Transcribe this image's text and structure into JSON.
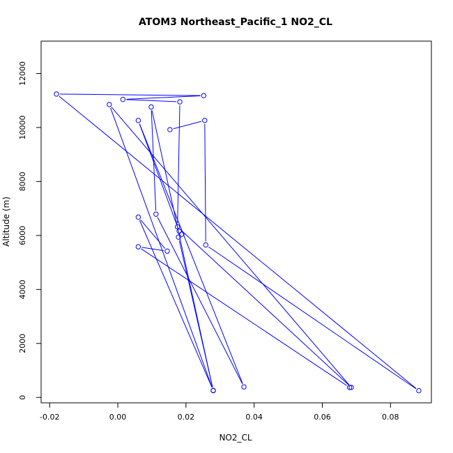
{
  "chart_data": {
    "type": "line",
    "title": "ATOM3 Northeast_Pacific_1 NO2_CL",
    "xlabel": "NO2_CL",
    "ylabel": "Altitude (m)",
    "xlim": [
      -0.0225,
      0.092
    ],
    "ylim": [
      -200,
      13200
    ],
    "x_ticks": [
      -0.02,
      0,
      0.02,
      0.04,
      0.06,
      0.08
    ],
    "x_tick_labels": [
      "-0.02",
      "0.00",
      "0.02",
      "0.04",
      "0.06",
      "0.08"
    ],
    "y_ticks": [
      0,
      2000,
      4000,
      6000,
      8000,
      10000,
      12000
    ],
    "y_tick_labels": [
      "0",
      "2000",
      "4000",
      "6000",
      "8000",
      "10000",
      "12000"
    ],
    "grid": false,
    "legend": "none",
    "series": [
      {
        "color": "#0000ff",
        "marker": "open-circle",
        "points": [
          {
            "x": 0.0153,
            "y": 9920
          },
          {
            "x": 0.0255,
            "y": 10260
          },
          {
            "x": 0.0258,
            "y": 5650
          },
          {
            "x": 0.0883,
            "y": 250
          },
          {
            "x": -0.018,
            "y": 11240
          },
          {
            "x": 0.0252,
            "y": 11180
          },
          {
            "x": 0.0015,
            "y": 11040
          },
          {
            "x": 0.0182,
            "y": 10950
          },
          {
            "x": 0.0175,
            "y": 6320
          },
          {
            "x": 0.0685,
            "y": 370
          },
          {
            "x": -0.0025,
            "y": 10850
          },
          {
            "x": 0.028,
            "y": 250
          },
          {
            "x": 0.0098,
            "y": 10760
          },
          {
            "x": 0.0112,
            "y": 6790
          },
          {
            "x": 0.037,
            "y": 390
          },
          {
            "x": 0.006,
            "y": 10260
          },
          {
            "x": 0.018,
            "y": 6160
          },
          {
            "x": 0.0188,
            "y": 6050
          },
          {
            "x": 0.0178,
            "y": 5940
          },
          {
            "x": 0.028,
            "y": 260
          },
          {
            "x": 0.006,
            "y": 6680
          },
          {
            "x": 0.0145,
            "y": 5420
          },
          {
            "x": 0.006,
            "y": 5580
          },
          {
            "x": 0.068,
            "y": 370
          }
        ]
      }
    ]
  }
}
